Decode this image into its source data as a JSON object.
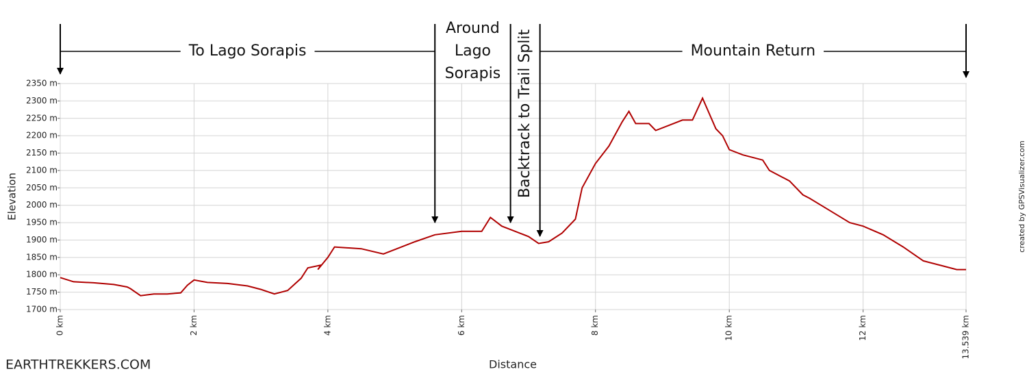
{
  "chart_data": {
    "type": "line",
    "x_label": "Distance",
    "y_label": "Elevation",
    "credit": "created by GPSVisualizer.com",
    "watermark": "EARTHTREKKERS.COM",
    "color": "#b00000",
    "grid": true,
    "xlim": [
      0,
      13.539
    ],
    "ylim": [
      1700,
      2350
    ],
    "xticks": [
      {
        "value": 0,
        "label": "0 km"
      },
      {
        "value": 2,
        "label": "2 km"
      },
      {
        "value": 4,
        "label": "4 km"
      },
      {
        "value": 6,
        "label": "6 km"
      },
      {
        "value": 8,
        "label": "8 km"
      },
      {
        "value": 10,
        "label": "10 km"
      },
      {
        "value": 12,
        "label": "12 km"
      },
      {
        "value": 13.539,
        "label": "13.539 km"
      }
    ],
    "yticks": [
      {
        "value": 1700,
        "label": "1700 m"
      },
      {
        "value": 1750,
        "label": "1750 m"
      },
      {
        "value": 1800,
        "label": "1800 m"
      },
      {
        "value": 1850,
        "label": "1850 m"
      },
      {
        "value": 1900,
        "label": "1900 m"
      },
      {
        "value": 1950,
        "label": "1950 m"
      },
      {
        "value": 2000,
        "label": "2000 m"
      },
      {
        "value": 2050,
        "label": "2050 m"
      },
      {
        "value": 2100,
        "label": "2100 m"
      },
      {
        "value": 2150,
        "label": "2150 m"
      },
      {
        "value": 2200,
        "label": "2200 m"
      },
      {
        "value": 2250,
        "label": "2250 m"
      },
      {
        "value": 2300,
        "label": "2300 m"
      },
      {
        "value": 2350,
        "label": "2350 m"
      }
    ],
    "x": [
      0,
      0.2,
      0.5,
      0.8,
      1.0,
      1.05,
      1.2,
      1.4,
      1.6,
      1.8,
      1.9,
      2.0,
      2.2,
      2.5,
      2.8,
      3.0,
      3.2,
      3.4,
      3.6,
      3.7,
      3.9,
      3.85,
      4.0,
      4.1,
      4.5,
      4.83,
      5.1,
      5.3,
      5.6,
      6.0,
      6.3,
      6.43,
      6.6,
      6.8,
      7.0,
      7.15,
      7.3,
      7.5,
      7.7,
      7.8,
      8.0,
      8.2,
      8.4,
      8.5,
      8.6,
      8.8,
      8.9,
      9.1,
      9.3,
      9.45,
      9.6,
      9.8,
      9.9,
      10.0,
      10.2,
      10.5,
      10.6,
      10.9,
      11.1,
      11.2,
      11.5,
      11.8,
      12.0,
      12.3,
      12.6,
      12.9,
      13.2,
      13.4,
      13.539
    ],
    "values": [
      1792,
      1780,
      1777,
      1772,
      1765,
      1760,
      1740,
      1745,
      1745,
      1748,
      1770,
      1785,
      1778,
      1775,
      1768,
      1758,
      1745,
      1755,
      1790,
      1820,
      1828,
      1815,
      1850,
      1880,
      1875,
      1860,
      1880,
      1895,
      1915,
      1925,
      1925,
      1965,
      1940,
      1925,
      1910,
      1890,
      1895,
      1920,
      1960,
      2050,
      2120,
      2170,
      2240,
      2270,
      2235,
      2235,
      2215,
      2230,
      2245,
      2245,
      2308,
      2220,
      2200,
      2160,
      2145,
      2130,
      2100,
      2070,
      2030,
      2020,
      1985,
      1950,
      1940,
      1915,
      1880,
      1840,
      1825,
      1815,
      1815
    ],
    "annotations": [
      {
        "label": "To Lago Sorapis",
        "x": [
          0,
          5.6
        ]
      },
      {
        "label": "Around Lago Sorapis",
        "x": [
          5.6,
          6.73
        ]
      },
      {
        "label": "Backtrack to Trail Split",
        "x": [
          6.73,
          7.17
        ]
      },
      {
        "label": "Mountain Return",
        "x": [
          7.17,
          13.539
        ]
      }
    ]
  }
}
